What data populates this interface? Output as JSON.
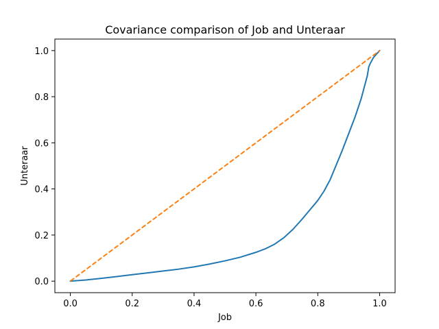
{
  "chart_data": {
    "type": "line",
    "title": "Covariance comparison of Job and Unteraar",
    "xlabel": "Job",
    "ylabel": "Unteraar",
    "xlim": [
      -0.05,
      1.05
    ],
    "ylim": [
      -0.05,
      1.05
    ],
    "xticks": [
      0.0,
      0.2,
      0.4,
      0.6,
      0.8,
      1.0
    ],
    "yticks": [
      0.0,
      0.2,
      0.4,
      0.6,
      0.8,
      1.0
    ],
    "xtick_labels": [
      "0.0",
      "0.2",
      "0.4",
      "0.6",
      "0.8",
      "1.0"
    ],
    "ytick_labels": [
      "0.0",
      "0.2",
      "0.4",
      "0.6",
      "0.8",
      "1.0"
    ],
    "grid": false,
    "legend": "none",
    "series": [
      {
        "style": "solid",
        "color": "#1f77b4",
        "x": [
          0.0,
          0.02,
          0.05,
          0.1,
          0.15,
          0.2,
          0.25,
          0.3,
          0.35,
          0.4,
          0.45,
          0.5,
          0.55,
          0.6,
          0.63,
          0.66,
          0.69,
          0.72,
          0.75,
          0.78,
          0.8,
          0.82,
          0.84,
          0.86,
          0.88,
          0.9,
          0.92,
          0.94,
          0.95,
          0.96,
          0.965,
          0.97,
          0.98,
          0.99,
          1.0
        ],
        "y": [
          0.0,
          0.002,
          0.005,
          0.012,
          0.02,
          0.028,
          0.036,
          0.044,
          0.052,
          0.062,
          0.074,
          0.088,
          0.104,
          0.125,
          0.14,
          0.16,
          0.188,
          0.225,
          0.27,
          0.318,
          0.35,
          0.39,
          0.44,
          0.505,
          0.57,
          0.64,
          0.71,
          0.79,
          0.84,
          0.89,
          0.93,
          0.945,
          0.97,
          0.985,
          1.0
        ]
      },
      {
        "style": "dashed",
        "color": "#ff7f0e",
        "x": [
          0.0,
          1.0
        ],
        "y": [
          0.0,
          1.0
        ]
      }
    ]
  }
}
